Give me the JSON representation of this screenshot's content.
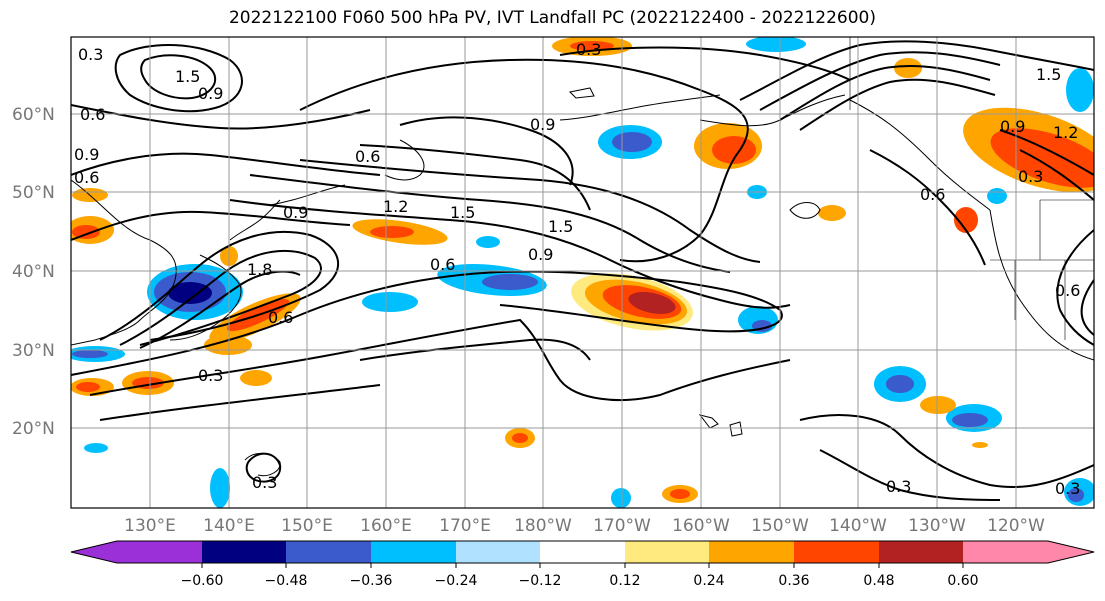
{
  "title": "2022122100 F060 500 hPa PV, IVT Landfall PC (2022122400 - 2022122600)",
  "map": {
    "lat_labels": [
      "60°N",
      "50°N",
      "40°N",
      "30°N",
      "20°N"
    ],
    "lon_labels": [
      "130°E",
      "140°E",
      "150°E",
      "160°E",
      "170°E",
      "180°W",
      "170°W",
      "160°W",
      "150°W",
      "140°W",
      "130°W",
      "120°W"
    ],
    "contour_labels": [
      "1.5",
      "0.9",
      "0.6",
      "0.6",
      "0.9",
      "0.6",
      "0.3",
      "0.6",
      "0.9",
      "1.2",
      "1.5",
      "1.5",
      "0.9",
      "0.9",
      "1.8",
      "0.6",
      "0.3",
      "0.3",
      "0.9",
      "1.2",
      "0.3",
      "0.6",
      "0.6",
      "0.3",
      "0.3",
      "0.3",
      "1.5"
    ],
    "shading_colors": [
      "#9b30d8",
      "#000080",
      "#3b5bcc",
      "#00bfff",
      "#b0e2ff",
      "#ffffff",
      "#ffea80",
      "#ffa500",
      "#ff4500",
      "#b22222",
      "#ff88aa"
    ]
  },
  "colorbar": {
    "tick_labels": [
      "−0.60",
      "−0.48",
      "−0.36",
      "−0.24",
      "−0.12",
      "0.12",
      "0.24",
      "0.36",
      "0.48",
      "0.60"
    ],
    "colors": [
      "#9b30d8",
      "#000080",
      "#3b5bcc",
      "#00bfff",
      "#b0e2ff",
      "#ffffff",
      "#ffea80",
      "#ffa500",
      "#ff4500",
      "#b22222",
      "#ff88aa"
    ]
  }
}
